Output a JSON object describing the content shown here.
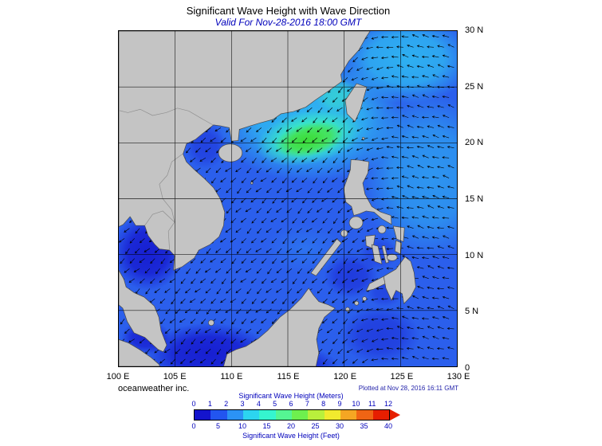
{
  "header": {
    "title": "Significant Wave Height with Wave Direction",
    "subtitle": "Valid For Nov-28-2016 18:00 GMT"
  },
  "map": {
    "x_tick_labels": [
      "100 E",
      "105 E",
      "110 E",
      "115 E",
      "120 E",
      "125 E",
      "130 E"
    ],
    "y_tick_labels_top_to_bottom": [
      "30 N",
      "25 N",
      "20 N",
      "15 N",
      "10 N",
      "5 N",
      "0"
    ],
    "lon_min": 100,
    "lon_max": 130,
    "lat_min": 0,
    "lat_max": 30
  },
  "annotations": {
    "credit": "oceanweather inc.",
    "plotted": "Plotted at Nov 28, 2016 16:11 GMT"
  },
  "legend": {
    "meters_title": "Significant Wave Height (Meters)",
    "feet_title": "Significant Wave Height (Feet)",
    "meters_ticks": [
      "0",
      "1",
      "2",
      "3",
      "4",
      "5",
      "6",
      "7",
      "8",
      "9",
      "10",
      "11",
      "12"
    ],
    "feet_ticks": [
      "0",
      "5",
      "10",
      "15",
      "20",
      "25",
      "30",
      "35",
      "40"
    ],
    "segment_colors": [
      "#1414cd",
      "#2255f0",
      "#2b93f5",
      "#2cd5f0",
      "#35f5cf",
      "#55f593",
      "#6ef04e",
      "#b9f03c",
      "#f2ea2e",
      "#f5a623",
      "#f06414",
      "#e61e00"
    ]
  }
}
